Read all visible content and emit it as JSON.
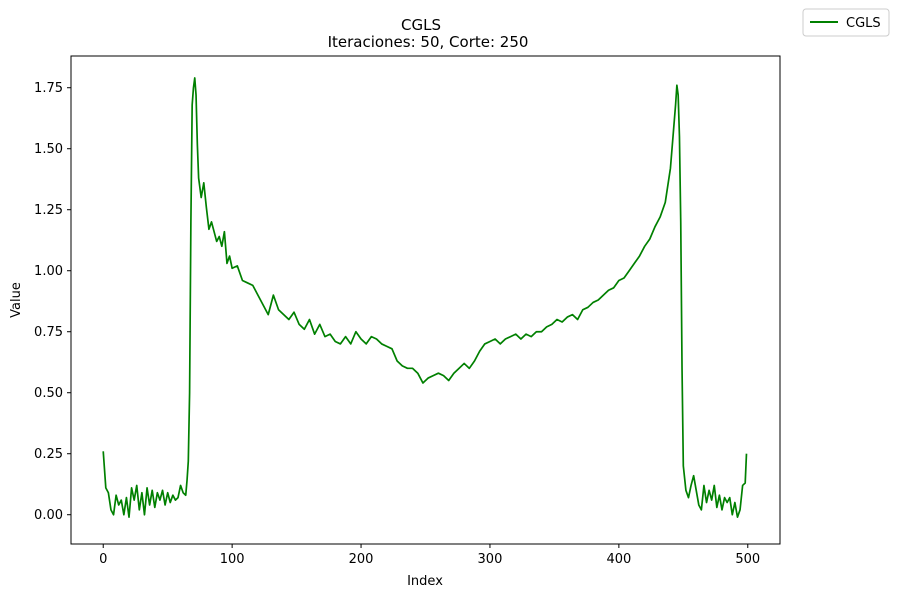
{
  "chart_data": {
    "type": "line",
    "title": "CGLS",
    "subtitle": "Iteraciones: 50, Corte: 250",
    "xlabel": "Index",
    "ylabel": "Value",
    "xlim": [
      -25,
      525
    ],
    "ylim": [
      -0.12,
      1.88
    ],
    "xticks": [
      0,
      100,
      200,
      300,
      400,
      500
    ],
    "yticks": [
      0.0,
      0.25,
      0.5,
      0.75,
      1.0,
      1.25,
      1.5,
      1.75
    ],
    "xtick_labels": [
      "0",
      "100",
      "200",
      "300",
      "400",
      "500"
    ],
    "ytick_labels": [
      "0.00",
      "0.25",
      "0.50",
      "0.75",
      "1.00",
      "1.25",
      "1.50",
      "1.75"
    ],
    "grid": false,
    "legend_position": "top-right outside",
    "series": [
      {
        "name": "CGLS",
        "color": "#008000",
        "points": [
          [
            0,
            0.26
          ],
          [
            2,
            0.11
          ],
          [
            4,
            0.09
          ],
          [
            6,
            0.02
          ],
          [
            8,
            0.0
          ],
          [
            10,
            0.08
          ],
          [
            12,
            0.04
          ],
          [
            14,
            0.06
          ],
          [
            16,
            0.0
          ],
          [
            18,
            0.07
          ],
          [
            20,
            -0.01
          ],
          [
            22,
            0.11
          ],
          [
            24,
            0.06
          ],
          [
            26,
            0.12
          ],
          [
            28,
            0.02
          ],
          [
            30,
            0.09
          ],
          [
            32,
            0.0
          ],
          [
            34,
            0.11
          ],
          [
            36,
            0.04
          ],
          [
            38,
            0.1
          ],
          [
            40,
            0.03
          ],
          [
            42,
            0.09
          ],
          [
            44,
            0.06
          ],
          [
            46,
            0.1
          ],
          [
            48,
            0.04
          ],
          [
            50,
            0.09
          ],
          [
            52,
            0.05
          ],
          [
            54,
            0.08
          ],
          [
            56,
            0.06
          ],
          [
            58,
            0.07
          ],
          [
            60,
            0.12
          ],
          [
            62,
            0.09
          ],
          [
            64,
            0.08
          ],
          [
            65,
            0.14
          ],
          [
            66,
            0.22
          ],
          [
            67,
            0.5
          ],
          [
            68,
            1.2
          ],
          [
            69,
            1.68
          ],
          [
            70,
            1.75
          ],
          [
            71,
            1.79
          ],
          [
            72,
            1.72
          ],
          [
            73,
            1.52
          ],
          [
            74,
            1.38
          ],
          [
            76,
            1.3
          ],
          [
            78,
            1.36
          ],
          [
            80,
            1.26
          ],
          [
            82,
            1.17
          ],
          [
            84,
            1.2
          ],
          [
            86,
            1.16
          ],
          [
            88,
            1.12
          ],
          [
            90,
            1.14
          ],
          [
            92,
            1.1
          ],
          [
            94,
            1.16
          ],
          [
            96,
            1.03
          ],
          [
            98,
            1.06
          ],
          [
            100,
            1.01
          ],
          [
            104,
            1.02
          ],
          [
            108,
            0.96
          ],
          [
            112,
            0.95
          ],
          [
            116,
            0.94
          ],
          [
            120,
            0.9
          ],
          [
            124,
            0.86
          ],
          [
            128,
            0.82
          ],
          [
            132,
            0.9
          ],
          [
            136,
            0.84
          ],
          [
            140,
            0.82
          ],
          [
            144,
            0.8
          ],
          [
            148,
            0.83
          ],
          [
            152,
            0.78
          ],
          [
            156,
            0.76
          ],
          [
            160,
            0.8
          ],
          [
            164,
            0.74
          ],
          [
            168,
            0.78
          ],
          [
            172,
            0.73
          ],
          [
            176,
            0.74
          ],
          [
            180,
            0.71
          ],
          [
            184,
            0.7
          ],
          [
            188,
            0.73
          ],
          [
            192,
            0.7
          ],
          [
            196,
            0.75
          ],
          [
            200,
            0.72
          ],
          [
            204,
            0.7
          ],
          [
            208,
            0.73
          ],
          [
            212,
            0.72
          ],
          [
            216,
            0.7
          ],
          [
            220,
            0.69
          ],
          [
            224,
            0.68
          ],
          [
            228,
            0.63
          ],
          [
            232,
            0.61
          ],
          [
            236,
            0.6
          ],
          [
            240,
            0.6
          ],
          [
            244,
            0.58
          ],
          [
            248,
            0.54
          ],
          [
            252,
            0.56
          ],
          [
            256,
            0.57
          ],
          [
            260,
            0.58
          ],
          [
            264,
            0.57
          ],
          [
            268,
            0.55
          ],
          [
            272,
            0.58
          ],
          [
            276,
            0.6
          ],
          [
            280,
            0.62
          ],
          [
            284,
            0.6
          ],
          [
            288,
            0.63
          ],
          [
            292,
            0.67
          ],
          [
            296,
            0.7
          ],
          [
            300,
            0.71
          ],
          [
            304,
            0.72
          ],
          [
            308,
            0.7
          ],
          [
            312,
            0.72
          ],
          [
            316,
            0.73
          ],
          [
            320,
            0.74
          ],
          [
            324,
            0.72
          ],
          [
            328,
            0.74
          ],
          [
            332,
            0.73
          ],
          [
            336,
            0.75
          ],
          [
            340,
            0.75
          ],
          [
            344,
            0.77
          ],
          [
            348,
            0.78
          ],
          [
            352,
            0.8
          ],
          [
            356,
            0.79
          ],
          [
            360,
            0.81
          ],
          [
            364,
            0.82
          ],
          [
            368,
            0.8
          ],
          [
            372,
            0.84
          ],
          [
            376,
            0.85
          ],
          [
            380,
            0.87
          ],
          [
            384,
            0.88
          ],
          [
            388,
            0.9
          ],
          [
            392,
            0.92
          ],
          [
            396,
            0.93
          ],
          [
            400,
            0.96
          ],
          [
            404,
            0.97
          ],
          [
            408,
            1.0
          ],
          [
            412,
            1.03
          ],
          [
            416,
            1.06
          ],
          [
            420,
            1.1
          ],
          [
            424,
            1.13
          ],
          [
            428,
            1.18
          ],
          [
            432,
            1.22
          ],
          [
            436,
            1.28
          ],
          [
            440,
            1.42
          ],
          [
            442,
            1.55
          ],
          [
            444,
            1.68
          ],
          [
            445,
            1.76
          ],
          [
            446,
            1.72
          ],
          [
            447,
            1.55
          ],
          [
            448,
            1.2
          ],
          [
            449,
            0.6
          ],
          [
            450,
            0.2
          ],
          [
            452,
            0.1
          ],
          [
            454,
            0.07
          ],
          [
            456,
            0.12
          ],
          [
            458,
            0.16
          ],
          [
            460,
            0.1
          ],
          [
            462,
            0.04
          ],
          [
            464,
            0.02
          ],
          [
            466,
            0.12
          ],
          [
            468,
            0.05
          ],
          [
            470,
            0.1
          ],
          [
            472,
            0.06
          ],
          [
            474,
            0.12
          ],
          [
            476,
            0.03
          ],
          [
            478,
            0.08
          ],
          [
            480,
            0.02
          ],
          [
            482,
            0.07
          ],
          [
            484,
            0.05
          ],
          [
            486,
            0.07
          ],
          [
            488,
            0.0
          ],
          [
            490,
            0.05
          ],
          [
            492,
            -0.01
          ],
          [
            494,
            0.02
          ],
          [
            496,
            0.12
          ],
          [
            498,
            0.13
          ],
          [
            499,
            0.25
          ]
        ]
      }
    ]
  }
}
